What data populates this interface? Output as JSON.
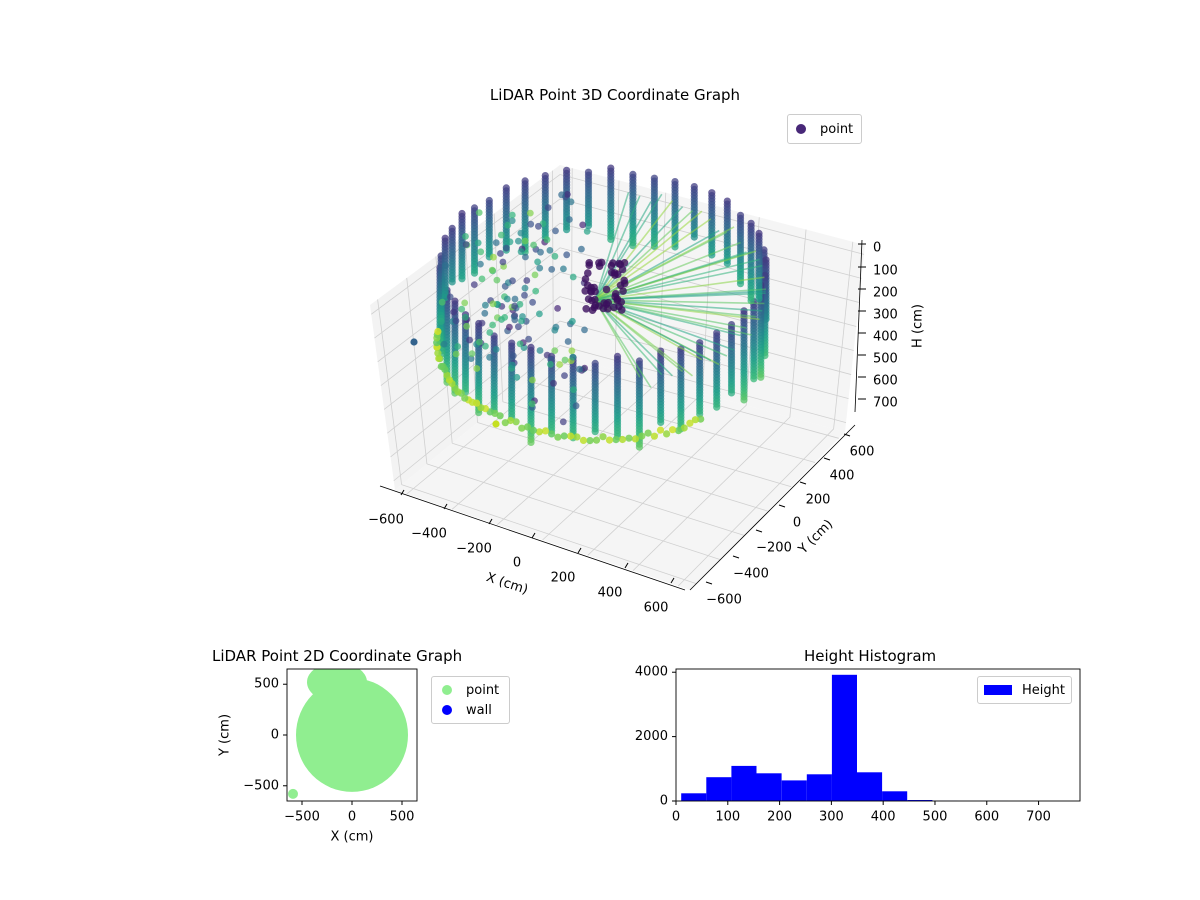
{
  "chart_data": [
    {
      "type": "scatter3d",
      "title": "LiDAR Point 3D Coordinate Graph",
      "xlabel": "X (cm)",
      "ylabel": "Y (cm)",
      "zlabel": "H (cm)",
      "xticks": [
        "−600",
        "−400",
        "−200",
        "0",
        "200",
        "400",
        "600"
      ],
      "yticks": [
        "600",
        "400",
        "200",
        "0",
        "−200",
        "−400",
        "−600"
      ],
      "zticks": [
        "0",
        "100",
        "200",
        "300",
        "400",
        "500",
        "600",
        "700"
      ],
      "xlim": [
        -650,
        650
      ],
      "ylim": [
        -650,
        650
      ],
      "zlim": [
        0,
        750
      ],
      "zinverted": true,
      "colormap": "viridis",
      "legend": [
        {
          "label": "point",
          "color": "#482878"
        }
      ],
      "legend_position": "upper-right"
    },
    {
      "type": "scatter",
      "title": "LiDAR Point 2D Coordinate Graph",
      "xlabel": "X (cm)",
      "ylabel": "Y (cm)",
      "xticks": [
        "−500",
        "0",
        "500"
      ],
      "yticks": [
        "500",
        "0",
        "−500"
      ],
      "xlim": [
        -650,
        650
      ],
      "ylim": [
        -650,
        650
      ],
      "series": [
        {
          "name": "point",
          "color": "#90ee90",
          "shape": "disc",
          "radius": 560
        },
        {
          "name": "wall",
          "color": "#0000ff",
          "points": []
        }
      ],
      "legend_position": "outside-right"
    },
    {
      "type": "bar",
      "title": "Height Histogram",
      "xlabel": "",
      "ylabel": "",
      "xticks": [
        "0",
        "100",
        "200",
        "300",
        "400",
        "500",
        "600",
        "700"
      ],
      "yticks": [
        "4000",
        "2000",
        "0"
      ],
      "xlim": [
        0,
        780
      ],
      "ylim": [
        0,
        4100
      ],
      "bin_width": 48.5,
      "bin_start": 10,
      "values": [
        240,
        740,
        1090,
        860,
        640,
        830,
        3920,
        890,
        300,
        30,
        5,
        3,
        2,
        1,
        1
      ],
      "series": [
        {
          "name": "Height",
          "color": "#0000ff"
        }
      ],
      "legend_position": "upper-right"
    }
  ]
}
